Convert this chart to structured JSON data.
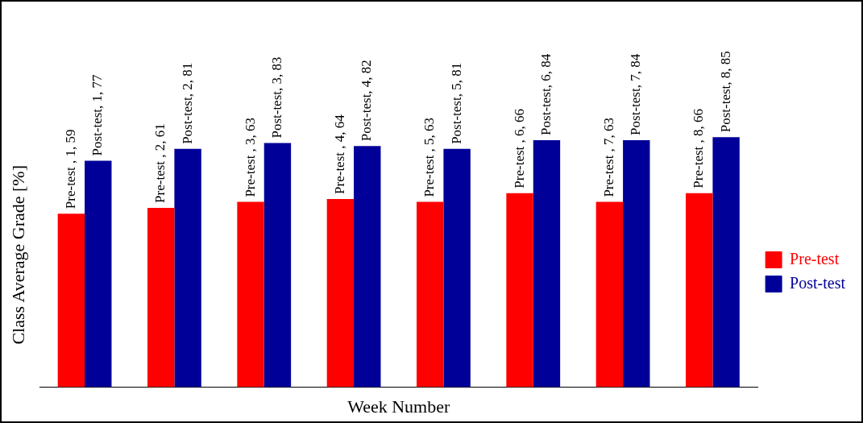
{
  "chart_data": {
    "type": "bar",
    "xlabel": "Week Number",
    "ylabel": "Class Average Grade [%]",
    "categories": [
      null,
      null,
      null,
      null,
      null,
      null,
      null,
      null
    ],
    "legend": "right",
    "series": [
      {
        "name": "Pre-test",
        "color": "#ff0000",
        "values": [
          59,
          61,
          63,
          64,
          63,
          66,
          63,
          66
        ],
        "value_labels": [
          "Pre-test , 1, 59",
          "Pre-test , 2, 61",
          "Pre-test , 3, 63",
          "Pre-test , 4, 64",
          "Pre-test , 5, 63",
          "Pre-test , 6, 66",
          "Pre-test , 7, 63",
          "Pre-test , 8, 66"
        ]
      },
      {
        "name": "Post-test",
        "color": "#000099",
        "values": [
          77,
          81,
          83,
          82,
          81,
          84,
          84,
          85
        ],
        "value_labels": [
          "Post-test, 1, 77",
          "Post-test, 2, 81",
          "Post-test, 3, 83",
          "Post-test, 4, 82",
          "Post-test, 5, 81",
          "Post-test, 6, 84",
          "Post-test, 7, 84",
          "Post-test, 8, 85"
        ]
      }
    ]
  }
}
